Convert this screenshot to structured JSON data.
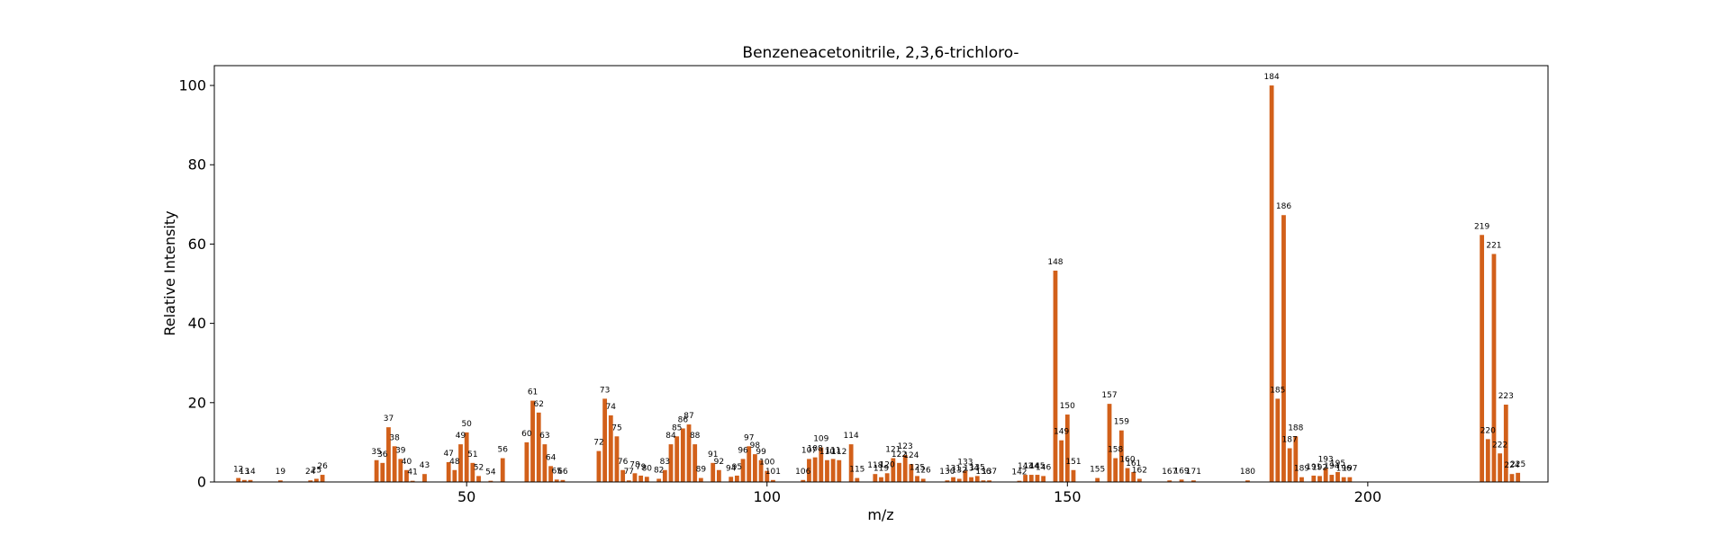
{
  "chart_data": {
    "type": "bar",
    "title": "Benzeneacetonitrile, 2,3,6-trichloro-",
    "xlabel": "m/z",
    "ylabel": "Relative Intensity",
    "xlim": [
      8,
      230
    ],
    "ylim": [
      0,
      105
    ],
    "xticks": [
      50,
      100,
      150,
      200
    ],
    "yticks": [
      0,
      20,
      40,
      60,
      80,
      100
    ],
    "grid": false,
    "legend": "none",
    "bar_color": "#d2601a",
    "peaks": [
      {
        "x": 12,
        "y": 1
      },
      {
        "x": 13,
        "y": 0.5
      },
      {
        "x": 14,
        "y": 0.5
      },
      {
        "x": 19,
        "y": 0.4
      },
      {
        "x": 24,
        "y": 0.4
      },
      {
        "x": 25,
        "y": 0.8
      },
      {
        "x": 26,
        "y": 1.8
      },
      {
        "x": 35,
        "y": 5.5
      },
      {
        "x": 36,
        "y": 4.8
      },
      {
        "x": 37,
        "y": 13.8
      },
      {
        "x": 38,
        "y": 9
      },
      {
        "x": 39,
        "y": 5.8
      },
      {
        "x": 40,
        "y": 3
      },
      {
        "x": 41,
        "y": 0.3
      },
      {
        "x": 43,
        "y": 2
      },
      {
        "x": 47,
        "y": 5
      },
      {
        "x": 48,
        "y": 3
      },
      {
        "x": 49,
        "y": 9.5
      },
      {
        "x": 50,
        "y": 12.5
      },
      {
        "x": 51,
        "y": 4.8
      },
      {
        "x": 52,
        "y": 1.5
      },
      {
        "x": 54,
        "y": 0.3
      },
      {
        "x": 56,
        "y": 6
      },
      {
        "x": 60,
        "y": 10
      },
      {
        "x": 61,
        "y": 20.5
      },
      {
        "x": 62,
        "y": 17.5
      },
      {
        "x": 63,
        "y": 9.5
      },
      {
        "x": 64,
        "y": 4
      },
      {
        "x": 65,
        "y": 0.6
      },
      {
        "x": 66,
        "y": 0.5
      },
      {
        "x": 72,
        "y": 7.8
      },
      {
        "x": 73,
        "y": 21
      },
      {
        "x": 74,
        "y": 16.8
      },
      {
        "x": 75,
        "y": 11.5
      },
      {
        "x": 76,
        "y": 3
      },
      {
        "x": 77,
        "y": 0.4
      },
      {
        "x": 78,
        "y": 2.2
      },
      {
        "x": 79,
        "y": 1.6
      },
      {
        "x": 80,
        "y": 1.3
      },
      {
        "x": 82,
        "y": 0.8
      },
      {
        "x": 83,
        "y": 3
      },
      {
        "x": 84,
        "y": 9.5
      },
      {
        "x": 85,
        "y": 11.5
      },
      {
        "x": 86,
        "y": 13.5
      },
      {
        "x": 87,
        "y": 14.5
      },
      {
        "x": 88,
        "y": 9.5
      },
      {
        "x": 89,
        "y": 1
      },
      {
        "x": 91,
        "y": 4.8
      },
      {
        "x": 92,
        "y": 3
      },
      {
        "x": 94,
        "y": 1.3
      },
      {
        "x": 95,
        "y": 1.6
      },
      {
        "x": 96,
        "y": 5.8
      },
      {
        "x": 97,
        "y": 9
      },
      {
        "x": 98,
        "y": 7
      },
      {
        "x": 99,
        "y": 5.5
      },
      {
        "x": 100,
        "y": 2.8
      },
      {
        "x": 101,
        "y": 0.5
      },
      {
        "x": 106,
        "y": 0.5
      },
      {
        "x": 107,
        "y": 5.8
      },
      {
        "x": 108,
        "y": 6.2
      },
      {
        "x": 109,
        "y": 8.7
      },
      {
        "x": 110,
        "y": 5.5
      },
      {
        "x": 111,
        "y": 5.8
      },
      {
        "x": 112,
        "y": 5.5
      },
      {
        "x": 114,
        "y": 9.5
      },
      {
        "x": 115,
        "y": 1
      },
      {
        "x": 118,
        "y": 2
      },
      {
        "x": 119,
        "y": 1.2
      },
      {
        "x": 120,
        "y": 2.2
      },
      {
        "x": 121,
        "y": 6
      },
      {
        "x": 122,
        "y": 4.8
      },
      {
        "x": 123,
        "y": 6.8
      },
      {
        "x": 124,
        "y": 4.5
      },
      {
        "x": 125,
        "y": 1.5
      },
      {
        "x": 126,
        "y": 0.8
      },
      {
        "x": 130,
        "y": 0.4
      },
      {
        "x": 131,
        "y": 1.2
      },
      {
        "x": 132,
        "y": 0.8
      },
      {
        "x": 133,
        "y": 2.8
      },
      {
        "x": 134,
        "y": 1.2
      },
      {
        "x": 135,
        "y": 1.5
      },
      {
        "x": 136,
        "y": 0.4
      },
      {
        "x": 137,
        "y": 0.4
      },
      {
        "x": 142,
        "y": 0.3
      },
      {
        "x": 143,
        "y": 1.8
      },
      {
        "x": 144,
        "y": 1.8
      },
      {
        "x": 145,
        "y": 1.8
      },
      {
        "x": 146,
        "y": 1.5
      },
      {
        "x": 148,
        "y": 53.3
      },
      {
        "x": 149,
        "y": 10.5
      },
      {
        "x": 150,
        "y": 17
      },
      {
        "x": 151,
        "y": 3
      },
      {
        "x": 155,
        "y": 1
      },
      {
        "x": 157,
        "y": 19.7
      },
      {
        "x": 158,
        "y": 6
      },
      {
        "x": 159,
        "y": 13
      },
      {
        "x": 160,
        "y": 3.5
      },
      {
        "x": 161,
        "y": 2.5
      },
      {
        "x": 162,
        "y": 0.8
      },
      {
        "x": 167,
        "y": 0.4
      },
      {
        "x": 169,
        "y": 0.6
      },
      {
        "x": 171,
        "y": 0.4
      },
      {
        "x": 180,
        "y": 0.4
      },
      {
        "x": 184,
        "y": 100
      },
      {
        "x": 185,
        "y": 21
      },
      {
        "x": 186,
        "y": 67.3
      },
      {
        "x": 187,
        "y": 8.5
      },
      {
        "x": 188,
        "y": 11.5
      },
      {
        "x": 189,
        "y": 1.2
      },
      {
        "x": 191,
        "y": 1.6
      },
      {
        "x": 192,
        "y": 1.5
      },
      {
        "x": 193,
        "y": 3.5
      },
      {
        "x": 194,
        "y": 1.8
      },
      {
        "x": 195,
        "y": 2.5
      },
      {
        "x": 196,
        "y": 1.2
      },
      {
        "x": 197,
        "y": 1.2
      },
      {
        "x": 219,
        "y": 62.3
      },
      {
        "x": 220,
        "y": 10.8
      },
      {
        "x": 221,
        "y": 57.5
      },
      {
        "x": 222,
        "y": 7.2
      },
      {
        "x": 223,
        "y": 19.5
      },
      {
        "x": 224,
        "y": 2
      },
      {
        "x": 225,
        "y": 2.3
      }
    ]
  }
}
